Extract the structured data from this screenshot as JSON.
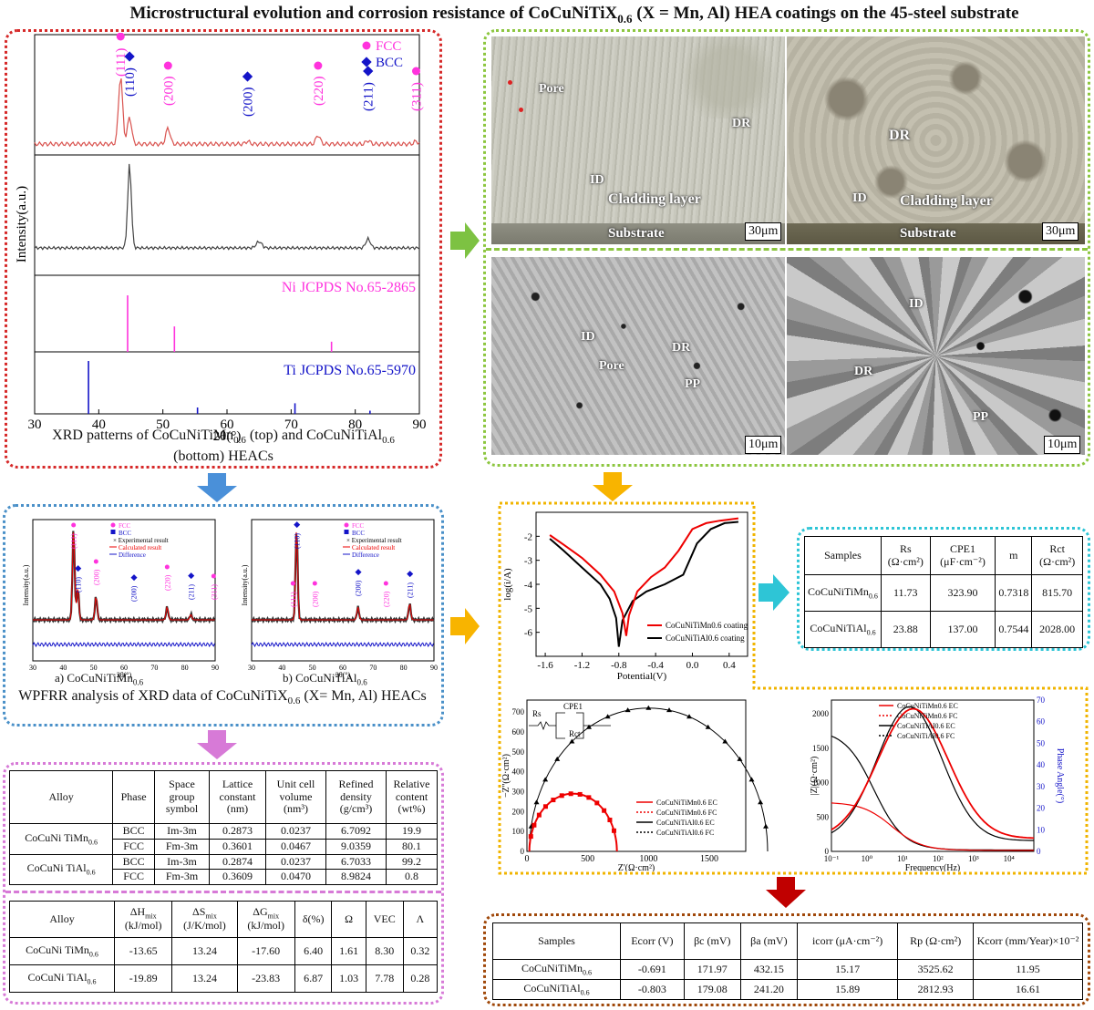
{
  "title": "Microstructural evolution and corrosion resistance of CoCuNiTiX",
  "title_sub": "0.6",
  "title_tail": " (X = Mn, Al) HEA coatings on the 45-steel substrate",
  "colors": {
    "red_box": "#d62929",
    "green_box": "#8cc63f",
    "blue_box": "#4a90c8",
    "pink_box": "#d77ad7",
    "yellow_box": "#f0b400",
    "cyan_box": "#2ec5d6",
    "brown_box": "#a0480a",
    "fcc": "#ff33dd",
    "bcc": "#1414c8",
    "xrd_top": "#d9534f",
    "xrd_mid": "#444444",
    "arrow_green": "#7dc242",
    "arrow_blue": "#4a90d9",
    "arrow_pink": "#d77ad7",
    "arrow_yellow": "#f8b400",
    "arrow_cyan": "#2ec5d6",
    "arrow_red": "#c00000"
  },
  "xrd": {
    "legend_fcc": "FCC",
    "legend_bcc": "BCC",
    "peaks_top": [
      {
        "label": "(111)",
        "type": "FCC",
        "x": 43.4
      },
      {
        "label": "(110)",
        "type": "BCC",
        "x": 44.8
      },
      {
        "label": "(200)",
        "type": "FCC",
        "x": 50.8
      },
      {
        "label": "(200)",
        "type": "BCC",
        "x": 63.2
      },
      {
        "label": "(220)",
        "type": "FCC",
        "x": 74.2
      },
      {
        "label": "(211)",
        "type": "BCC",
        "x": 82.0
      },
      {
        "label": "(311)",
        "type": "FCC",
        "x": 89.5
      }
    ],
    "ni_label": "Ni JCPDS No.65-2865",
    "ti_label": "Ti JCPDS No.65-5970",
    "ni_lines": [
      {
        "x": 44.5,
        "h": 1.0
      },
      {
        "x": 51.8,
        "h": 0.45
      },
      {
        "x": 76.3,
        "h": 0.18
      }
    ],
    "ti_lines": [
      {
        "x": 38.4,
        "h": 1.0
      },
      {
        "x": 55.4,
        "h": 0.12
      },
      {
        "x": 70.6,
        "h": 0.2
      },
      {
        "x": 82.3,
        "h": 0.06
      }
    ],
    "ylabel": "Intensity(a.u.)",
    "xlabel": "2θ(°)",
    "xticks": [
      "30",
      "40",
      "50",
      "60",
      "70",
      "80",
      "90"
    ],
    "caption_a": "XRD patterns of CoCuNiTiMn",
    "caption_a_sub": "0.6",
    "caption_b": " (top) and CoCuNiTiAl",
    "caption_b_sub": "0.6",
    "caption_c": "(bottom) HEACs"
  },
  "micro": {
    "om_left": {
      "labels": [
        "Pore",
        "DR",
        "ID",
        "Cladding layer",
        "Substrate"
      ],
      "scale": "30μm"
    },
    "om_right": {
      "labels": [
        "DR",
        "ID",
        "Cladding layer",
        "Substrate"
      ],
      "scale": "30μm"
    },
    "sem_left": {
      "labels": [
        "ID",
        "DR",
        "Pore",
        "PP"
      ],
      "scale": "10μm"
    },
    "sem_right": {
      "labels": [
        "ID",
        "DR",
        "PP"
      ],
      "scale": "10μm"
    }
  },
  "wpfrr": {
    "legend": [
      "FCC",
      "BCC",
      "Experimental result",
      "Calculated result",
      "Difference"
    ],
    "a_peaks": [
      "(111)",
      "(110)",
      "(200)",
      "(200)",
      "(220)",
      "(211)",
      "(311)"
    ],
    "b_peaks": [
      "(110)",
      "(111)",
      "(200)",
      "(200)",
      "(220)",
      "(211)"
    ],
    "ylabel": "Intensity(a.u.)",
    "xlabel": "2θ(°)",
    "xticks": [
      "30",
      "40",
      "50",
      "60",
      "70",
      "80",
      "90"
    ],
    "sub_a": "a) CoCuNiTiMn",
    "sub_a_s": "0.6",
    "sub_b": "b) CoCuNiTiAl",
    "sub_b_s": "0.6",
    "caption": "WPFRR analysis of XRD data of CoCuNiTiX",
    "caption_sub": "0.6",
    "caption_tail": " (X= Mn, Al) HEACs"
  },
  "phase_table": {
    "headers": [
      "Alloy",
      "Phase",
      "Space group symbol",
      "Lattice constant (nm)",
      "Unit cell volume (nm³)",
      "Refined density (g/cm³)",
      "Relative content (wt%)"
    ],
    "alloy1": "CoCuNi TiMn",
    "alloy1_sub": "0.6",
    "alloy2": "CoCuNi TiAl",
    "alloy2_sub": "0.6",
    "rows": [
      [
        "BCC",
        "Im-3m",
        "0.2873",
        "0.0237",
        "6.7092",
        "19.9"
      ],
      [
        "FCC",
        "Fm-3m",
        "0.3601",
        "0.0467",
        "9.0359",
        "80.1"
      ],
      [
        "BCC",
        "Im-3m",
        "0.2874",
        "0.0237",
        "6.7033",
        "99.2"
      ],
      [
        "FCC",
        "Fm-3m",
        "0.3609",
        "0.0470",
        "8.9824",
        "0.8"
      ]
    ]
  },
  "thermo_table": {
    "headers": [
      "Alloy",
      "ΔH",
      "ΔS",
      "ΔG",
      "δ(%)",
      "Ω",
      "VEC",
      "Λ"
    ],
    "header_units": [
      "",
      "(kJ/mol)",
      "(J/K/mol)",
      "(kJ/mol)",
      "",
      "",
      "",
      ""
    ],
    "rows": [
      [
        "-13.65",
        "13.24",
        "-17.60",
        "6.40",
        "1.61",
        "8.30",
        "0.32"
      ],
      [
        "-19.89",
        "13.24",
        "-23.83",
        "6.87",
        "1.03",
        "7.78",
        "0.28"
      ]
    ]
  },
  "polarization": {
    "xlabel": "Potential(V)",
    "ylabel": "log(i/A)",
    "xticks": [
      "-1.6",
      "-1.2",
      "-0.8",
      "-0.4",
      "0.0",
      "0.4"
    ],
    "yticks": [
      "-2",
      "-3",
      "-4",
      "-5",
      "-6"
    ],
    "legend1": "CoCuNiTiMn",
    "legend1_sub": "0.6",
    "legend1_tail": " coating",
    "legend2": "CoCuNiTiAl",
    "legend2_sub": "0.6",
    "legend2_tail": " coating",
    "mn_curve": [
      [
        -1.55,
        -1.95
      ],
      [
        -1.4,
        -2.35
      ],
      [
        -1.2,
        -2.9
      ],
      [
        -1.0,
        -3.6
      ],
      [
        -0.85,
        -4.3
      ],
      [
        -0.76,
        -5.2
      ],
      [
        -0.72,
        -6.15
      ],
      [
        -0.69,
        -5.3
      ],
      [
        -0.6,
        -4.3
      ],
      [
        -0.45,
        -3.7
      ],
      [
        -0.3,
        -3.3
      ],
      [
        -0.15,
        -2.6
      ],
      [
        0.0,
        -1.7
      ],
      [
        0.15,
        -1.45
      ],
      [
        0.3,
        -1.35
      ],
      [
        0.5,
        -1.25
      ]
    ],
    "al_curve": [
      [
        -1.55,
        -2.1
      ],
      [
        -1.4,
        -2.6
      ],
      [
        -1.2,
        -3.3
      ],
      [
        -1.0,
        -4.0
      ],
      [
        -0.9,
        -4.6
      ],
      [
        -0.83,
        -5.4
      ],
      [
        -0.8,
        -6.6
      ],
      [
        -0.76,
        -5.5
      ],
      [
        -0.65,
        -4.7
      ],
      [
        -0.5,
        -4.3
      ],
      [
        -0.3,
        -4.0
      ],
      [
        -0.1,
        -3.6
      ],
      [
        0.05,
        -2.3
      ],
      [
        0.2,
        -1.7
      ],
      [
        0.35,
        -1.45
      ],
      [
        0.5,
        -1.4
      ]
    ]
  },
  "eis_table": {
    "headers": [
      "Samples",
      "Rs (Ω·cm²)",
      "CPE1 (μF·cm⁻²)",
      "m",
      "Rct (Ω·cm²)"
    ],
    "rows": [
      [
        "CoCuNiTiMn",
        "0.6",
        "11.73",
        "323.90",
        "0.7318",
        "815.70"
      ],
      [
        "CoCuNiTiAl",
        "0.6",
        "23.88",
        "137.00",
        "0.7544",
        "2028.00"
      ]
    ]
  },
  "nyquist": {
    "xlabel": "Z'(Ω·cm²)",
    "ylabel": "−Z''(Ω·cm²)",
    "xticks": [
      "0",
      "500",
      "1000",
      "1500"
    ],
    "yticks": [
      "0",
      "100",
      "200",
      "300",
      "400",
      "500",
      "600",
      "700"
    ],
    "circuit": [
      "Rs",
      "CPE1",
      "Rct"
    ],
    "legend": [
      "CoCuNiTiMn",
      "CoCuNiTiMn",
      "CoCuNiTiAl",
      "CoCuNiTiAl"
    ],
    "legend_tail": [
      "EC",
      "FC",
      "EC",
      "FC"
    ]
  },
  "bode": {
    "xlabel": "Frequency(Hz)",
    "ylabel": "|Z|(Ω·cm²)",
    "ylabel2": "Phase Angle(°)",
    "yticks": [
      "0",
      "500",
      "1000",
      "1500",
      "2000"
    ],
    "yticks2": [
      "0",
      "10",
      "20",
      "30",
      "40",
      "50",
      "60",
      "70"
    ],
    "legend": [
      "CoCuNiTiMn",
      "CoCuNiTiMn",
      "CoCuNiTiAl",
      "CoCuNiTiAl"
    ],
    "legend_tail": [
      "EC",
      "FC",
      "EC",
      "FC"
    ]
  },
  "tafel_table": {
    "headers": [
      "Samples",
      "Ecorr (V)",
      "βc (mV)",
      "βa (mV)",
      "icorr (μA·cm⁻²)",
      "Rp (Ω·cm²)",
      "Kcorr (mm/Year)×10⁻²"
    ],
    "rows": [
      [
        "CoCuNiTiMn",
        "-0.691",
        "171.97",
        "432.15",
        "15.17",
        "3525.62",
        "11.95"
      ],
      [
        "CoCuNiTiAl",
        "-0.803",
        "179.08",
        "241.20",
        "15.89",
        "2812.93",
        "16.61"
      ]
    ]
  }
}
